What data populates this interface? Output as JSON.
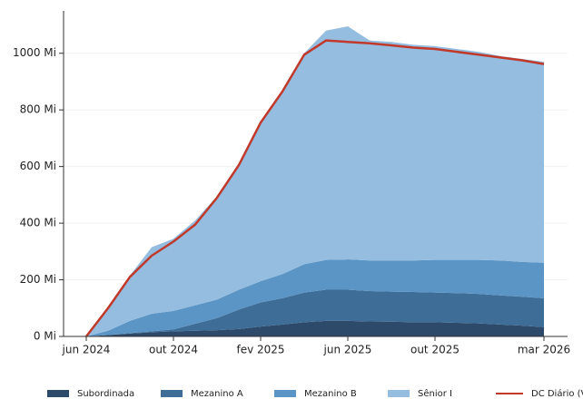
{
  "chart_data": {
    "type": "area",
    "stacked": true,
    "grid": true,
    "x": [
      "2024-06",
      "2024-07",
      "2024-08",
      "2024-09",
      "2024-10",
      "2024-11",
      "2024-12",
      "2025-01",
      "2025-02",
      "2025-03",
      "2025-04",
      "2025-05",
      "2025-06",
      "2025-07",
      "2025-08",
      "2025-09",
      "2025-10",
      "2025-11",
      "2025-12",
      "2026-01",
      "2026-02",
      "2026-03"
    ],
    "xticks": [
      {
        "value": "2024-06",
        "label": "jun 2024"
      },
      {
        "value": "2024-10",
        "label": "out 2024"
      },
      {
        "value": "2025-02",
        "label": "fev 2025"
      },
      {
        "value": "2025-06",
        "label": "jun 2025"
      },
      {
        "value": "2025-10",
        "label": "out 2025"
      },
      {
        "value": "2026-03",
        "label": "mar 2026"
      }
    ],
    "ylim": [
      0,
      1140
    ],
    "yticks": [
      {
        "value": 0,
        "label": "0 Mi"
      },
      {
        "value": 200,
        "label": "200 Mi"
      },
      {
        "value": 400,
        "label": "400 Mi"
      },
      {
        "value": 600,
        "label": "600 Mi"
      },
      {
        "value": 800,
        "label": "800 Mi"
      },
      {
        "value": 1000,
        "label": "1000 Mi"
      }
    ],
    "series": [
      {
        "name": "Subordinada",
        "color": "#2e4a6b",
        "values": [
          0,
          5,
          10,
          15,
          18,
          20,
          22,
          26,
          35,
          42,
          50,
          55,
          55,
          53,
          52,
          50,
          50,
          48,
          46,
          42,
          38,
          33
        ]
      },
      {
        "name": "Mezanino A",
        "color": "#3e6d98",
        "values": [
          0,
          0,
          2,
          3,
          7,
          25,
          43,
          69,
          85,
          93,
          105,
          110,
          110,
          107,
          106,
          107,
          105,
          105,
          104,
          103,
          102,
          102
        ]
      },
      {
        "name": "Mezanino B",
        "color": "#5b95c5",
        "values": [
          0,
          15,
          43,
          62,
          65,
          65,
          65,
          70,
          75,
          85,
          100,
          105,
          107,
          108,
          110,
          111,
          115,
          117,
          120,
          123,
          123,
          125
        ]
      },
      {
        "name": "Sênior I",
        "color": "#94bde0",
        "values": [
          0,
          80,
          160,
          235,
          255,
          300,
          365,
          445,
          565,
          650,
          745,
          810,
          823,
          777,
          772,
          762,
          755,
          745,
          735,
          722,
          717,
          710
        ]
      },
      {
        "name": "DC Diário (VP)",
        "color": "#c0392b",
        "type": "line",
        "values": [
          0,
          100,
          210,
          285,
          335,
          395,
          490,
          605,
          755,
          865,
          995,
          1045,
          1040,
          1035,
          1028,
          1020,
          1015,
          1005,
          995,
          985,
          975,
          962
        ]
      }
    ]
  }
}
